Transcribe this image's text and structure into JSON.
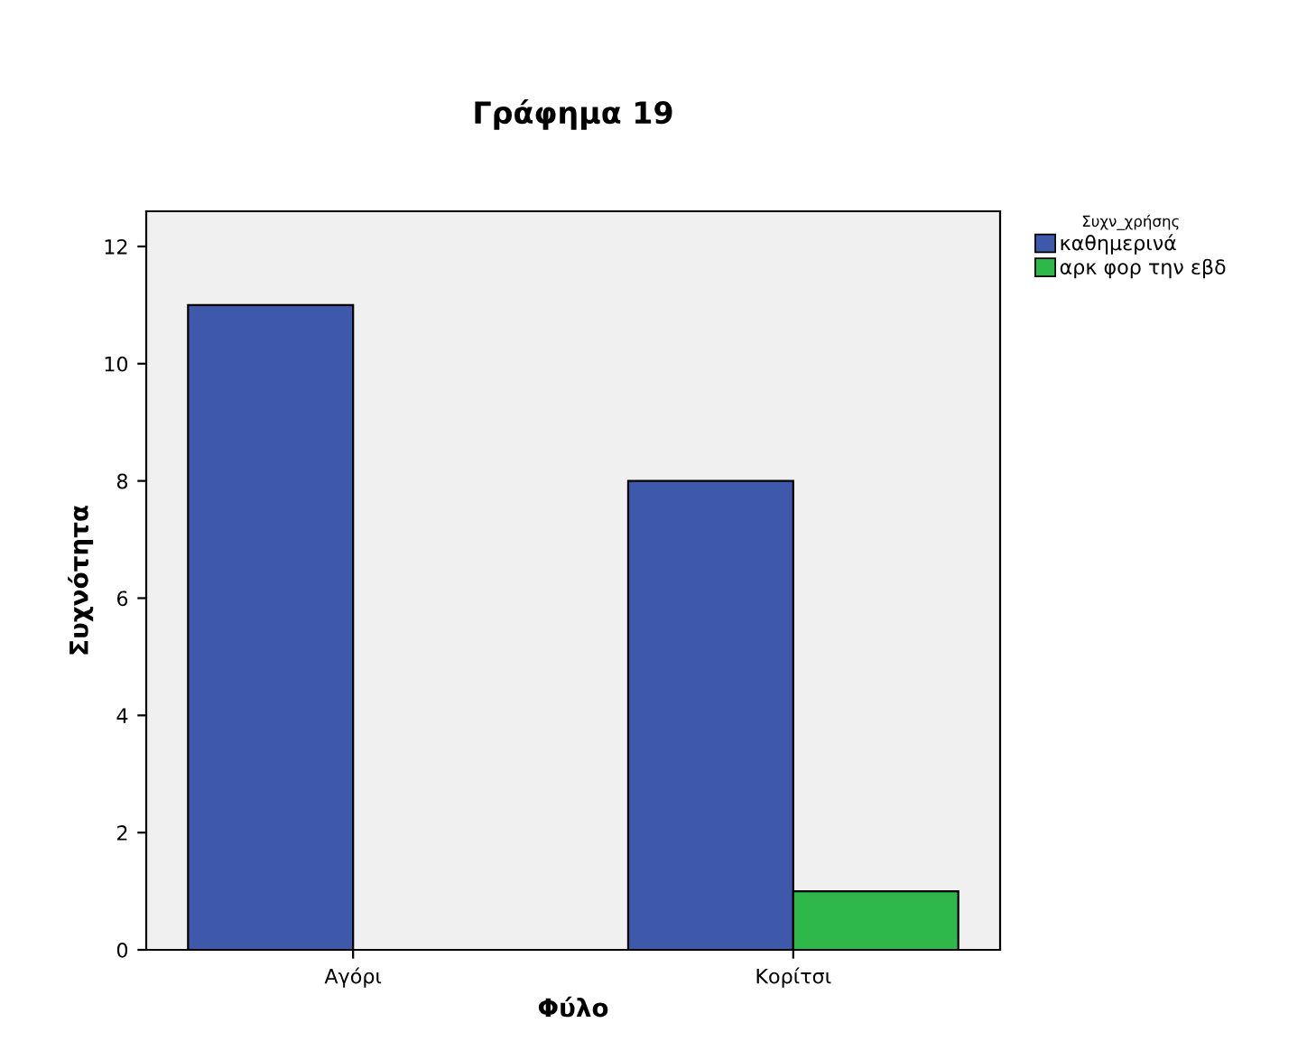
{
  "chart_data": {
    "type": "bar",
    "title": "Γράφημα 19",
    "xlabel": "Φύλο",
    "ylabel": "Συχνότητα",
    "legend_title": "Συχν_χρήσης",
    "categories": [
      "Αγόρι",
      "Κορίτσι"
    ],
    "series": [
      {
        "name": "καθημερινά",
        "color": "#3e58ac",
        "values": [
          11,
          8
        ]
      },
      {
        "name": "αρκ φορ την εβδ",
        "color": "#2fb84a",
        "values": [
          null,
          1
        ]
      }
    ],
    "ylim": [
      0,
      12.6
    ],
    "yticks": [
      0,
      2,
      4,
      6,
      8,
      10,
      12
    ],
    "grid": false,
    "legend": "top right"
  }
}
